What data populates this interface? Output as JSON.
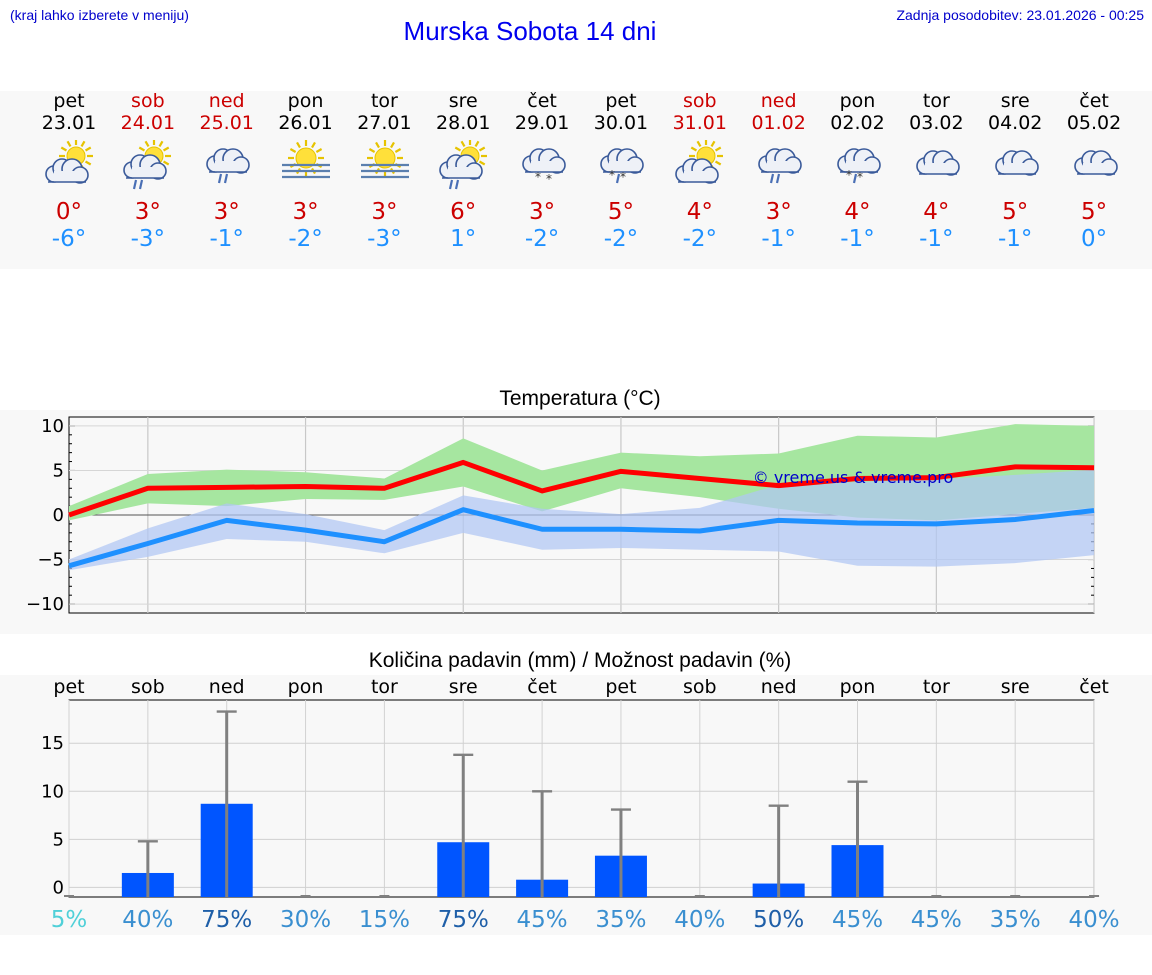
{
  "header": {
    "region_hint": "(kraj lahko izberete v meniju)",
    "title": "Murska Sobota 14 dni",
    "last_update": "Zadnja posodobitev: 23.01.2026 - 00:25"
  },
  "days": [
    {
      "name": "pet",
      "date": "23.01",
      "weekend": false,
      "icon": "sun-cloud-icon",
      "tmax": "0°",
      "tmin": "-6°"
    },
    {
      "name": "sob",
      "date": "24.01",
      "weekend": true,
      "icon": "sun-cloud-rain-icon",
      "tmax": "3°",
      "tmin": "-3°"
    },
    {
      "name": "ned",
      "date": "25.01",
      "weekend": true,
      "icon": "cloud-rain-icon",
      "tmax": "3°",
      "tmin": "-1°"
    },
    {
      "name": "pon",
      "date": "26.01",
      "weekend": false,
      "icon": "sun-fog-icon",
      "tmax": "3°",
      "tmin": "-2°"
    },
    {
      "name": "tor",
      "date": "27.01",
      "weekend": false,
      "icon": "sun-fog-icon",
      "tmax": "3°",
      "tmin": "-3°"
    },
    {
      "name": "sre",
      "date": "28.01",
      "weekend": false,
      "icon": "sun-cloud-rain-icon",
      "tmax": "6°",
      "tmin": "1°"
    },
    {
      "name": "čet",
      "date": "29.01",
      "weekend": false,
      "icon": "cloud-snow-icon",
      "tmax": "3°",
      "tmin": "-2°"
    },
    {
      "name": "pet",
      "date": "30.01",
      "weekend": false,
      "icon": "cloud-sleet-icon",
      "tmax": "5°",
      "tmin": "-2°"
    },
    {
      "name": "sob",
      "date": "31.01",
      "weekend": true,
      "icon": "sun-cloud-icon",
      "tmax": "4°",
      "tmin": "-2°"
    },
    {
      "name": "ned",
      "date": "01.02",
      "weekend": true,
      "icon": "cloud-rain-icon",
      "tmax": "3°",
      "tmin": "-1°"
    },
    {
      "name": "pon",
      "date": "02.02",
      "weekend": false,
      "icon": "cloud-sleet-icon",
      "tmax": "4°",
      "tmin": "-1°"
    },
    {
      "name": "tor",
      "date": "03.02",
      "weekend": false,
      "icon": "cloud-icon",
      "tmax": "4°",
      "tmin": "-1°"
    },
    {
      "name": "sre",
      "date": "04.02",
      "weekend": false,
      "icon": "cloud-icon",
      "tmax": "5°",
      "tmin": "-1°"
    },
    {
      "name": "čet",
      "date": "05.02",
      "weekend": false,
      "icon": "cloud-icon",
      "tmax": "5°",
      "tmin": "0°"
    }
  ],
  "chart_data": [
    {
      "type": "line",
      "title": "Temperatura (°C)",
      "watermark": "© vreme.us & vreme.pro",
      "x_days": [
        1,
        2,
        3,
        4,
        5,
        6,
        7,
        8,
        9,
        10,
        11,
        12,
        13,
        14
      ],
      "ylim": [
        -11,
        11
      ],
      "yticks": [
        10,
        5,
        0,
        -5,
        -10
      ],
      "ytick_labels": [
        "10",
        "5",
        "0",
        "−5",
        "−10"
      ],
      "series": [
        {
          "name": "max",
          "color": "#ff0000",
          "x": [
            1,
            2,
            3,
            4,
            5,
            6,
            7,
            8,
            9,
            10,
            11,
            12,
            13,
            14
          ],
          "values": [
            0,
            3,
            3.1,
            3.2,
            3,
            5.9,
            2.7,
            4.9,
            4.1,
            3.3,
            4.1,
            4.2,
            5.4,
            5.3
          ]
        },
        {
          "name": "max_range",
          "color": "#a6e6a0",
          "x": [
            1,
            2,
            3,
            4,
            5,
            6,
            7,
            8,
            9,
            10,
            11,
            12,
            13,
            14
          ],
          "low": [
            -0.6,
            1.3,
            1,
            1.8,
            1.7,
            3.2,
            0.4,
            3,
            2,
            0.7,
            -0.3,
            -0.6,
            0.1,
            0.8
          ],
          "high": [
            1,
            4.6,
            5.1,
            4.8,
            4.1,
            8.6,
            5,
            7,
            6.6,
            6.9,
            8.9,
            8.7,
            10.2,
            10
          ]
        },
        {
          "name": "min",
          "color": "#1e90ff",
          "x": [
            1,
            2,
            3,
            4,
            5,
            6,
            7,
            8,
            9,
            10,
            11,
            12,
            13,
            14
          ],
          "values": [
            -5.7,
            -3.2,
            -0.6,
            -1.7,
            -3,
            0.6,
            -1.6,
            -1.6,
            -1.8,
            -0.6,
            -0.9,
            -1,
            -0.5,
            0.5
          ]
        },
        {
          "name": "min_range",
          "color": "#b0c6f4",
          "x": [
            1,
            2,
            3,
            4,
            5,
            6,
            7,
            8,
            9,
            10,
            11,
            12,
            13,
            14
          ],
          "low": [
            -6.2,
            -4.7,
            -2.7,
            -3,
            -4.3,
            -2,
            -3.9,
            -3.7,
            -3.9,
            -4.1,
            -5.7,
            -5.8,
            -5.4,
            -4.5
          ],
          "high": [
            -5,
            -1.5,
            1.3,
            0.1,
            -1.7,
            2.2,
            0.7,
            0.1,
            0.8,
            3.4,
            3.7,
            4,
            4.5,
            5.1
          ]
        }
      ]
    },
    {
      "type": "bar",
      "title": "Količina padavin (mm) / Možnost padavin (%)",
      "categories": [
        "pet",
        "sob",
        "ned",
        "pon",
        "tor",
        "sre",
        "čet",
        "pet",
        "sob",
        "ned",
        "pon",
        "tor",
        "sre",
        "čet"
      ],
      "values": [
        0,
        1.5,
        8.7,
        0,
        0,
        4.7,
        0.8,
        3.3,
        0,
        0.4,
        4.4,
        0,
        0,
        0
      ],
      "max_values": [
        0,
        4.8,
        18.3,
        0,
        0,
        13.8,
        10,
        8.1,
        0,
        8.5,
        11,
        0,
        0,
        0
      ],
      "ylim": [
        -1,
        19.5
      ],
      "yticks": [
        15,
        10,
        5,
        0
      ],
      "ytick_labels": [
        "15",
        "10",
        "5",
        "0"
      ],
      "bar_color": "#0055ff",
      "probability": [
        "5%",
        "40%",
        "75%",
        "30%",
        "15%",
        "75%",
        "45%",
        "35%",
        "40%",
        "50%",
        "45%",
        "45%",
        "35%",
        "40%"
      ],
      "probability_colors": [
        "#50d0d8",
        "#3a8fd0",
        "#1f5fa8",
        "#3a8fd0",
        "#3a8fd0",
        "#1f5fa8",
        "#3a8fd0",
        "#3a8fd0",
        "#3a8fd0",
        "#1f5fa8",
        "#3a8fd0",
        "#3a8fd0",
        "#3a8fd0",
        "#3a8fd0"
      ]
    }
  ]
}
